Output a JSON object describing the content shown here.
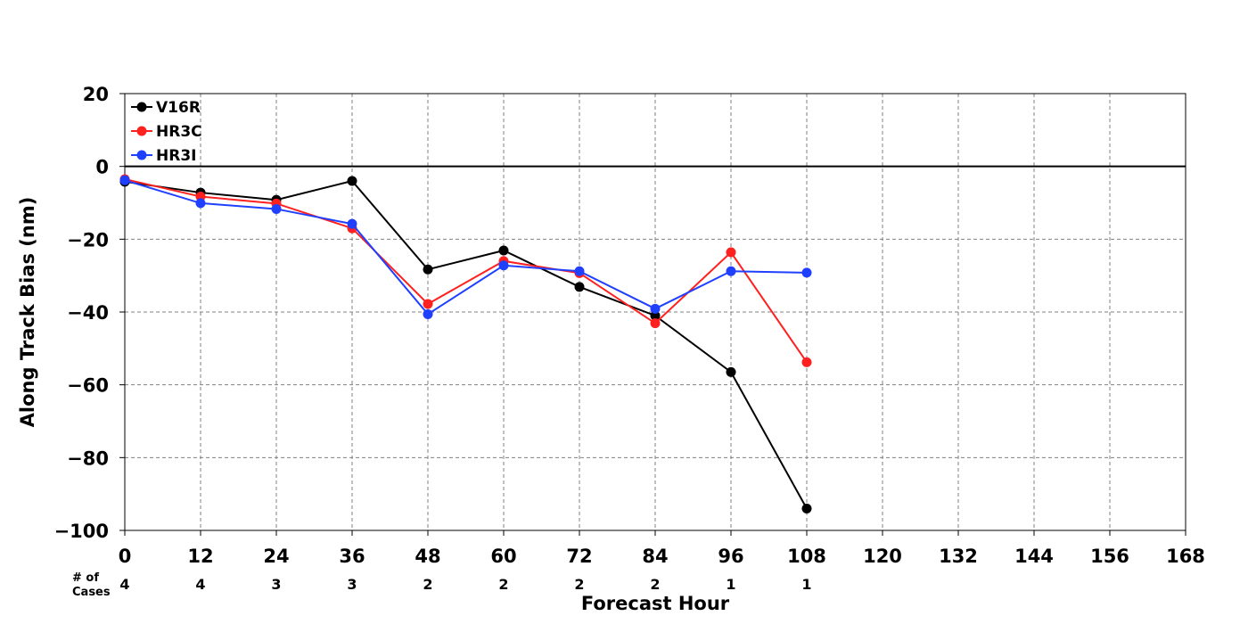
{
  "chart_data": {
    "type": "line",
    "title": "",
    "xlabel": "Forecast Hour",
    "ylabel": "Along Track Bias (nm)",
    "xlim": [
      0,
      168
    ],
    "ylim": [
      -100,
      20
    ],
    "xticks": [
      0,
      12,
      24,
      36,
      48,
      60,
      72,
      84,
      96,
      108,
      120,
      132,
      144,
      156,
      168
    ],
    "yticks": [
      20,
      0,
      -20,
      -40,
      -60,
      -80,
      -100
    ],
    "grid": true,
    "legend_position": "top-left",
    "zero_line": true,
    "series": [
      {
        "name": "V16R",
        "color": "#000000",
        "x": [
          0,
          12,
          24,
          36,
          48,
          60,
          72,
          84,
          96,
          108
        ],
        "y": [
          -4.2,
          -7.2,
          -9.2,
          -4.0,
          -28.3,
          -23.1,
          -33.1,
          -41.0,
          -56.5,
          -94.0
        ]
      },
      {
        "name": "HR3C",
        "color": "#ff2020",
        "x": [
          0,
          12,
          24,
          36,
          48,
          60,
          72,
          84,
          96,
          108
        ],
        "y": [
          -3.5,
          -8.3,
          -10.2,
          -17.0,
          -37.8,
          -26.0,
          -29.3,
          -43.1,
          -23.6,
          -53.8
        ]
      },
      {
        "name": "HR3I",
        "color": "#2040ff",
        "x": [
          0,
          12,
          24,
          36,
          48,
          60,
          72,
          84,
          96,
          108
        ],
        "y": [
          -3.8,
          -10.1,
          -11.7,
          -15.8,
          -40.6,
          -27.2,
          -28.8,
          -39.1,
          -28.8,
          -29.2
        ]
      }
    ],
    "cases": {
      "label": "# of\nCases",
      "x": [
        0,
        12,
        24,
        36,
        48,
        60,
        72,
        84,
        96,
        108
      ],
      "values": [
        "4",
        "4",
        "3",
        "3",
        "2",
        "2",
        "2",
        "2",
        "1",
        "1"
      ]
    }
  }
}
